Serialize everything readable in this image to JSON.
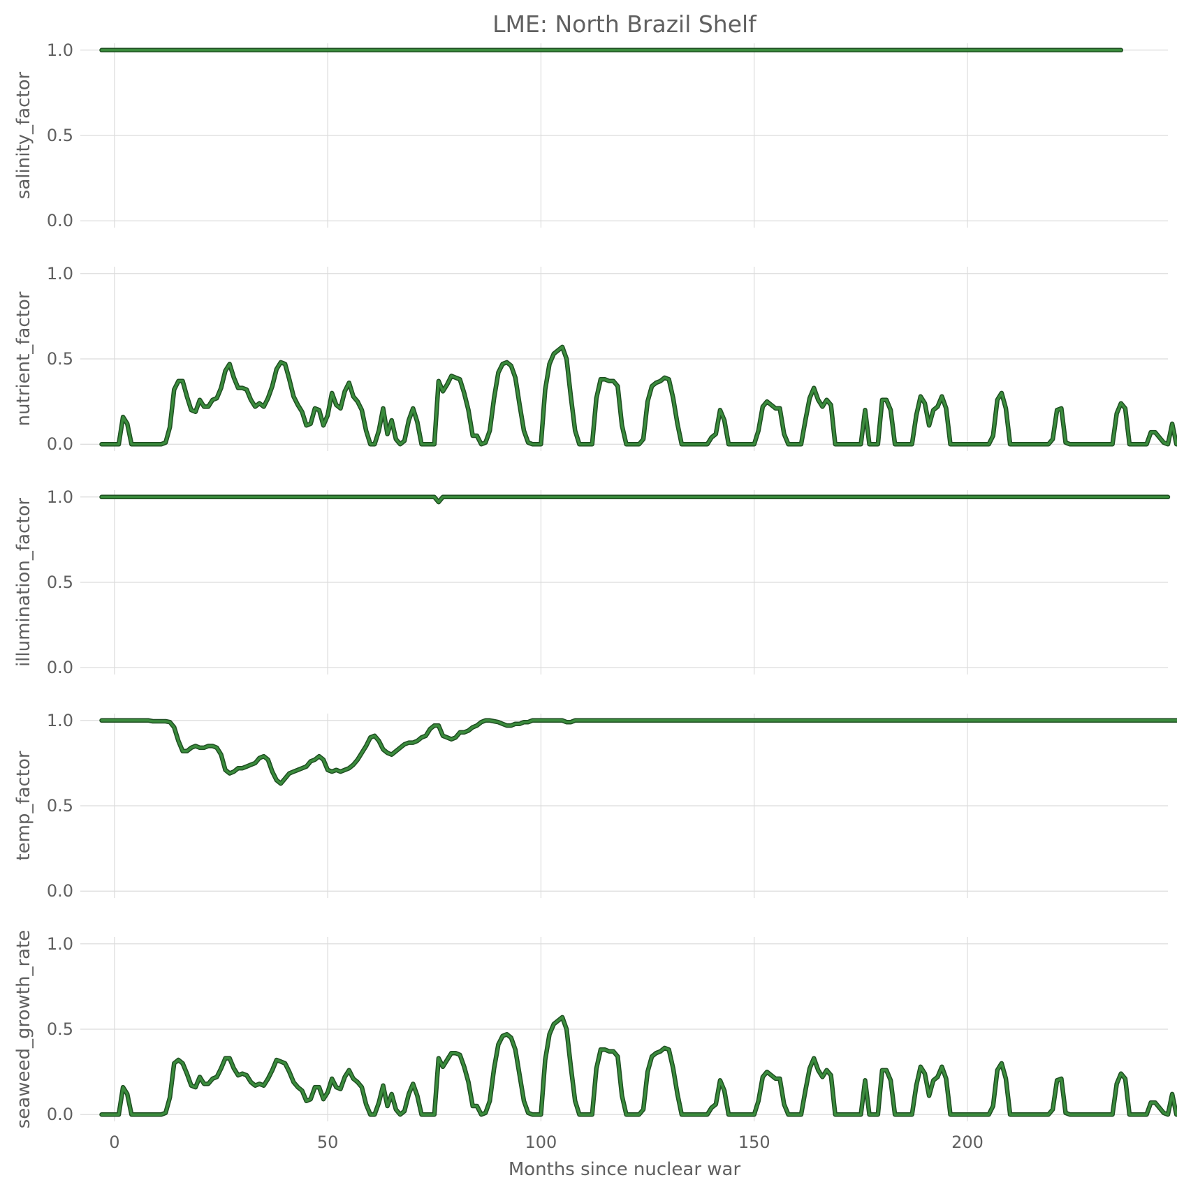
{
  "chart_data": {
    "type": "line",
    "title": "LME: North Brazil Shelf",
    "xlabel": "Months since nuclear war",
    "xlim": [
      -8,
      247
    ],
    "xticks": [
      0,
      50,
      100,
      150,
      200
    ],
    "x_start": -3,
    "x_step": 1,
    "grid": true,
    "line_color": "#3a8b3c",
    "line_edge_color": "#1f4f22",
    "panels": [
      {
        "ylabel": "salinity_factor",
        "ylim": [
          -0.04,
          1.04
        ],
        "yticks": [
          0.0,
          0.5,
          1.0
        ],
        "values": [
          1,
          1,
          1,
          1,
          1,
          1,
          1,
          1,
          1,
          1,
          1,
          1,
          1,
          1,
          1,
          1,
          1,
          1,
          1,
          1,
          1,
          1,
          1,
          1,
          1,
          1,
          1,
          1,
          1,
          1,
          1,
          1,
          1,
          1,
          1,
          1,
          1,
          1,
          1,
          1,
          1,
          1,
          1,
          1,
          1,
          1,
          1,
          1,
          1,
          1,
          1,
          1,
          1,
          1,
          1,
          1,
          1,
          1,
          1,
          1,
          1,
          1,
          1,
          1,
          1,
          1,
          1,
          1,
          1,
          1,
          1,
          1,
          1,
          1,
          1,
          1,
          1,
          1,
          1,
          1,
          1,
          1,
          1,
          1,
          1,
          1,
          1,
          1,
          1,
          1,
          1,
          1,
          1,
          1,
          1,
          1,
          1,
          1,
          1,
          1,
          1,
          1,
          1,
          1,
          1,
          1,
          1,
          1,
          1,
          1,
          1,
          1,
          1,
          1,
          1,
          1,
          1,
          1,
          1,
          1,
          1,
          1,
          1,
          1,
          1,
          1,
          1,
          1,
          1,
          1,
          1,
          1,
          1,
          1,
          1,
          1,
          1,
          1,
          1,
          1,
          1,
          1,
          1,
          1,
          1,
          1,
          1,
          1,
          1,
          1,
          1,
          1,
          1,
          1,
          1,
          1,
          1,
          1,
          1,
          1,
          1,
          1,
          1,
          1,
          1,
          1,
          1,
          1,
          1,
          1,
          1,
          1,
          1,
          1,
          1,
          1,
          1,
          1,
          1,
          1,
          1,
          1,
          1,
          1,
          1,
          1,
          1,
          1,
          1,
          1,
          1,
          1,
          1,
          1,
          1,
          1,
          1,
          1,
          1,
          1,
          1,
          1,
          1,
          1,
          1,
          1,
          1,
          1,
          1,
          1,
          1,
          1,
          1,
          1,
          1,
          1,
          1,
          1,
          1,
          1,
          1,
          1,
          1,
          1,
          1,
          1,
          1,
          1,
          1,
          1,
          1,
          1,
          1,
          1,
          1,
          1,
          1,
          1,
          1,
          1
        ]
      },
      {
        "ylabel": "nutrient_factor",
        "ylim": [
          -0.04,
          1.04
        ],
        "yticks": [
          0.0,
          0.5,
          1.0
        ],
        "values": [
          0,
          0,
          0,
          0,
          0,
          0.16,
          0.12,
          0,
          0,
          0,
          0,
          0,
          0,
          0,
          0,
          0.01,
          0.1,
          0.32,
          0.37,
          0.37,
          0.28,
          0.2,
          0.19,
          0.26,
          0.22,
          0.22,
          0.26,
          0.27,
          0.33,
          0.43,
          0.47,
          0.39,
          0.33,
          0.33,
          0.32,
          0.26,
          0.22,
          0.24,
          0.22,
          0.27,
          0.34,
          0.44,
          0.48,
          0.47,
          0.38,
          0.28,
          0.23,
          0.19,
          0.11,
          0.12,
          0.21,
          0.2,
          0.11,
          0.17,
          0.3,
          0.23,
          0.21,
          0.31,
          0.36,
          0.28,
          0.25,
          0.2,
          0.08,
          0,
          0,
          0.08,
          0.21,
          0.06,
          0.14,
          0.03,
          0,
          0.02,
          0.14,
          0.21,
          0.13,
          0,
          0,
          0,
          0,
          0.37,
          0.31,
          0.35,
          0.4,
          0.39,
          0.38,
          0.3,
          0.2,
          0.05,
          0.05,
          0,
          0.01,
          0.08,
          0.27,
          0.42,
          0.47,
          0.48,
          0.46,
          0.39,
          0.23,
          0.08,
          0.01,
          0,
          0,
          0,
          0.32,
          0.47,
          0.53,
          0.55,
          0.57,
          0.5,
          0.28,
          0.08,
          0,
          0,
          0,
          0,
          0.27,
          0.38,
          0.38,
          0.37,
          0.37,
          0.34,
          0.11,
          0,
          0,
          0,
          0,
          0.03,
          0.25,
          0.34,
          0.36,
          0.37,
          0.39,
          0.38,
          0.27,
          0.12,
          0,
          0,
          0,
          0,
          0,
          0,
          0,
          0.04,
          0.06,
          0.2,
          0.14,
          0,
          0,
          0,
          0,
          0,
          0,
          0,
          0.08,
          0.22,
          0.25,
          0.23,
          0.21,
          0.21,
          0.06,
          0,
          0,
          0,
          0,
          0.14,
          0.27,
          0.33,
          0.26,
          0.22,
          0.26,
          0.23,
          0,
          0,
          0,
          0,
          0,
          0,
          0,
          0.2,
          0,
          0,
          0,
          0.26,
          0.26,
          0.2,
          0,
          0,
          0,
          0,
          0,
          0.17,
          0.28,
          0.24,
          0.11,
          0.2,
          0.22,
          0.28,
          0.21,
          0,
          0,
          0,
          0,
          0,
          0,
          0,
          0,
          0,
          0,
          0.05,
          0.26,
          0.3,
          0.21,
          0,
          0,
          0,
          0,
          0,
          0,
          0,
          0,
          0,
          0,
          0.03,
          0.2,
          0.21,
          0.01,
          0,
          0,
          0,
          0,
          0,
          0,
          0,
          0,
          0,
          0,
          0,
          0.18,
          0.24,
          0.21,
          0,
          0,
          0,
          0,
          0,
          0.07,
          0.07,
          0.04,
          0.01,
          0,
          0.12,
          0
        ]
      },
      {
        "ylabel": "illumination_factor",
        "ylim": [
          -0.04,
          1.04
        ],
        "yticks": [
          0.0,
          0.5,
          1.0
        ],
        "values": [
          1,
          1,
          1,
          1,
          1,
          1,
          1,
          1,
          1,
          1,
          1,
          1,
          1,
          1,
          1,
          1,
          1,
          1,
          1,
          1,
          1,
          1,
          1,
          1,
          1,
          1,
          1,
          1,
          1,
          1,
          1,
          1,
          1,
          1,
          1,
          1,
          1,
          1,
          1,
          1,
          1,
          1,
          1,
          1,
          1,
          1,
          1,
          1,
          1,
          1,
          1,
          1,
          1,
          1,
          1,
          1,
          1,
          1,
          1,
          1,
          1,
          1,
          1,
          1,
          1,
          1,
          1,
          1,
          1,
          1,
          1,
          1,
          1,
          1,
          1,
          1,
          1,
          1,
          1,
          0.97,
          1,
          1,
          1,
          1,
          1,
          1,
          1,
          1,
          1,
          1,
          1,
          1,
          1,
          1,
          1,
          1,
          1,
          1,
          1,
          1,
          1,
          1,
          1,
          1,
          1,
          1,
          1,
          1,
          1,
          1,
          1,
          1,
          1,
          1,
          1,
          1,
          1,
          1,
          1,
          1,
          1,
          1,
          1,
          1,
          1,
          1,
          1,
          1,
          1,
          1,
          1,
          1,
          1,
          1,
          1,
          1,
          1,
          1,
          1,
          1,
          1,
          1,
          1,
          1,
          1,
          1,
          1,
          1,
          1,
          1,
          1,
          1,
          1,
          1,
          1,
          1,
          1,
          1,
          1,
          1,
          1,
          1,
          1,
          1,
          1,
          1,
          1,
          1,
          1,
          1,
          1,
          1,
          1,
          1,
          1,
          1,
          1,
          1,
          1,
          1,
          1,
          1,
          1,
          1,
          1,
          1,
          1,
          1,
          1,
          1,
          1,
          1,
          1,
          1,
          1,
          1,
          1,
          1,
          1,
          1,
          1,
          1,
          1,
          1,
          1,
          1,
          1,
          1,
          1,
          1,
          1,
          1,
          1,
          1,
          1,
          1,
          1,
          1,
          1,
          1,
          1,
          1,
          1,
          1,
          1,
          1,
          1,
          1,
          1,
          1,
          1,
          1,
          1,
          1,
          1,
          1,
          1,
          1,
          1,
          1,
          1,
          1,
          1,
          1,
          1,
          1,
          1,
          1,
          1,
          1,
          1
        ]
      },
      {
        "ylabel": "temp_factor",
        "ylim": [
          -0.04,
          1.04
        ],
        "yticks": [
          0.0,
          0.5,
          1.0
        ],
        "values": [
          1,
          1,
          1,
          1,
          1,
          1,
          1,
          1,
          1,
          1,
          1,
          1,
          0.995,
          0.995,
          0.995,
          0.995,
          0.99,
          0.96,
          0.88,
          0.82,
          0.82,
          0.84,
          0.85,
          0.84,
          0.84,
          0.85,
          0.85,
          0.84,
          0.8,
          0.71,
          0.69,
          0.7,
          0.72,
          0.72,
          0.73,
          0.74,
          0.75,
          0.78,
          0.79,
          0.77,
          0.7,
          0.65,
          0.63,
          0.66,
          0.69,
          0.7,
          0.71,
          0.72,
          0.73,
          0.76,
          0.77,
          0.79,
          0.77,
          0.71,
          0.7,
          0.71,
          0.7,
          0.71,
          0.72,
          0.74,
          0.77,
          0.81,
          0.85,
          0.9,
          0.91,
          0.88,
          0.83,
          0.81,
          0.8,
          0.82,
          0.84,
          0.86,
          0.87,
          0.87,
          0.88,
          0.9,
          0.91,
          0.95,
          0.97,
          0.97,
          0.91,
          0.9,
          0.89,
          0.9,
          0.93,
          0.93,
          0.94,
          0.96,
          0.97,
          0.99,
          1,
          1,
          0.995,
          0.99,
          0.98,
          0.97,
          0.97,
          0.98,
          0.98,
          0.99,
          0.99,
          1,
          1,
          1,
          1,
          1,
          1,
          1,
          1,
          0.99,
          0.99,
          1,
          1,
          1,
          1,
          1,
          1,
          1,
          1,
          1,
          1,
          1,
          1,
          1,
          1,
          1,
          1,
          1,
          1,
          1,
          1,
          1,
          1,
          1,
          1,
          1,
          1,
          1,
          1,
          1,
          1,
          1,
          1,
          1,
          1,
          1,
          1,
          1,
          1,
          1,
          1,
          1,
          1,
          1,
          1,
          1,
          1,
          1,
          1,
          1,
          1,
          1,
          1,
          1,
          1,
          1,
          1,
          1,
          1,
          1,
          1,
          1,
          1,
          1,
          1,
          1,
          1,
          1,
          1,
          1,
          1,
          1,
          1,
          1,
          1,
          1,
          1,
          1,
          1,
          1,
          1,
          1,
          1,
          1,
          1,
          1,
          1,
          1,
          1,
          1,
          1,
          1,
          1,
          1,
          1,
          1,
          1,
          1,
          1,
          1,
          1,
          1,
          1,
          1,
          1,
          1,
          1,
          1,
          1,
          1,
          1,
          1,
          1,
          1,
          1,
          1,
          1,
          1,
          1,
          1,
          1,
          1,
          1,
          1,
          1,
          1,
          1,
          1,
          1,
          1,
          1,
          1,
          1,
          1,
          1,
          1,
          1,
          1,
          1,
          1,
          1,
          1,
          1,
          1,
          1
        ]
      },
      {
        "ylabel": "seaweed_growth_rate",
        "ylim": [
          -0.04,
          1.04
        ],
        "yticks": [
          0.0,
          0.5,
          1.0
        ],
        "values": [
          0,
          0,
          0,
          0,
          0,
          0.16,
          0.12,
          0,
          0,
          0,
          0,
          0,
          0,
          0,
          0,
          0.01,
          0.1,
          0.3,
          0.32,
          0.3,
          0.24,
          0.17,
          0.16,
          0.22,
          0.18,
          0.18,
          0.21,
          0.22,
          0.27,
          0.33,
          0.33,
          0.27,
          0.23,
          0.24,
          0.23,
          0.19,
          0.17,
          0.18,
          0.17,
          0.21,
          0.26,
          0.32,
          0.31,
          0.3,
          0.25,
          0.19,
          0.16,
          0.14,
          0.08,
          0.09,
          0.16,
          0.16,
          0.09,
          0.13,
          0.21,
          0.16,
          0.15,
          0.22,
          0.26,
          0.21,
          0.19,
          0.16,
          0.06,
          0,
          0,
          0.07,
          0.17,
          0.05,
          0.12,
          0.03,
          0,
          0.02,
          0.12,
          0.18,
          0.11,
          0,
          0,
          0,
          0,
          0.33,
          0.28,
          0.32,
          0.36,
          0.36,
          0.35,
          0.28,
          0.19,
          0.05,
          0.05,
          0,
          0.01,
          0.08,
          0.27,
          0.41,
          0.46,
          0.47,
          0.45,
          0.38,
          0.23,
          0.08,
          0.01,
          0,
          0,
          0,
          0.32,
          0.47,
          0.53,
          0.55,
          0.57,
          0.5,
          0.28,
          0.08,
          0,
          0,
          0,
          0,
          0.27,
          0.38,
          0.38,
          0.37,
          0.37,
          0.34,
          0.11,
          0,
          0,
          0,
          0,
          0.03,
          0.25,
          0.34,
          0.36,
          0.37,
          0.39,
          0.38,
          0.27,
          0.12,
          0,
          0,
          0,
          0,
          0,
          0,
          0,
          0.04,
          0.06,
          0.2,
          0.14,
          0,
          0,
          0,
          0,
          0,
          0,
          0,
          0.08,
          0.22,
          0.25,
          0.23,
          0.21,
          0.21,
          0.06,
          0,
          0,
          0,
          0,
          0.14,
          0.27,
          0.33,
          0.26,
          0.22,
          0.26,
          0.23,
          0,
          0,
          0,
          0,
          0,
          0,
          0,
          0.2,
          0,
          0,
          0,
          0.26,
          0.26,
          0.2,
          0,
          0,
          0,
          0,
          0,
          0.17,
          0.28,
          0.24,
          0.11,
          0.2,
          0.22,
          0.28,
          0.21,
          0,
          0,
          0,
          0,
          0,
          0,
          0,
          0,
          0,
          0,
          0.05,
          0.26,
          0.3,
          0.21,
          0,
          0,
          0,
          0,
          0,
          0,
          0,
          0,
          0,
          0,
          0.03,
          0.2,
          0.21,
          0.01,
          0,
          0,
          0,
          0,
          0,
          0,
          0,
          0,
          0,
          0,
          0,
          0.18,
          0.24,
          0.21,
          0,
          0,
          0,
          0,
          0,
          0.07,
          0.07,
          0.04,
          0.01,
          0,
          0.12,
          0
        ]
      }
    ]
  }
}
